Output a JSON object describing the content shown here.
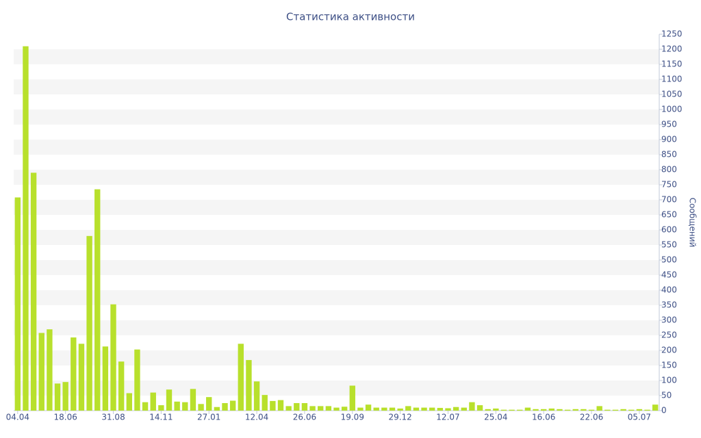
{
  "chart_data": {
    "type": "bar",
    "title": "Статистика активности",
    "y_label": "Сообщений",
    "categories": [
      "04.04",
      null,
      null,
      null,
      null,
      null,
      "18.06",
      null,
      null,
      null,
      null,
      null,
      "31.08",
      null,
      null,
      null,
      null,
      null,
      "14.11",
      null,
      null,
      null,
      null,
      null,
      "27.01",
      null,
      null,
      null,
      null,
      null,
      "12.04",
      null,
      null,
      null,
      null,
      null,
      "26.06",
      null,
      null,
      null,
      null,
      null,
      "19.09",
      null,
      null,
      null,
      null,
      null,
      "29.12",
      null,
      null,
      null,
      null,
      null,
      "12.07",
      null,
      null,
      null,
      null,
      null,
      "25.04",
      null,
      null,
      null,
      null,
      null,
      "16.06",
      null,
      null,
      null,
      null,
      null,
      "22.06",
      null,
      null,
      null,
      null,
      null,
      "05.07",
      null,
      null
    ],
    "values": [
      708,
      1210,
      790,
      258,
      270,
      90,
      95,
      243,
      222,
      580,
      735,
      213,
      353,
      163,
      58,
      203,
      28,
      60,
      18,
      70,
      30,
      28,
      72,
      22,
      45,
      12,
      25,
      33,
      222,
      168,
      97,
      52,
      32,
      35,
      15,
      25,
      25,
      15,
      15,
      15,
      10,
      13,
      83,
      10,
      20,
      10,
      10,
      10,
      7,
      15,
      10,
      10,
      10,
      9,
      8,
      12,
      10,
      28,
      18,
      5,
      7,
      3,
      3,
      3,
      10,
      5,
      5,
      7,
      5,
      3,
      5,
      5,
      3,
      15,
      3,
      3,
      5,
      3,
      5,
      3,
      20
    ],
    "color": "#b8e02c",
    "ylim": [
      0,
      1250
    ],
    "yticks": [
      0,
      50,
      100,
      150,
      200,
      250,
      300,
      350,
      400,
      450,
      500,
      550,
      600,
      650,
      700,
      750,
      800,
      850,
      900,
      950,
      1000,
      1050,
      1100,
      1150,
      1200,
      1250
    ],
    "grid": true
  }
}
